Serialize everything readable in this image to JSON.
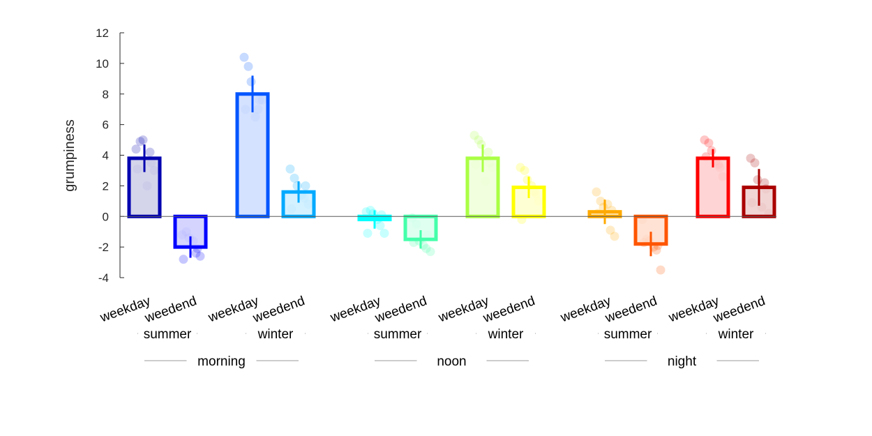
{
  "chart_data": {
    "type": "bar",
    "ylabel": "grumpiness",
    "ylim": [
      -4,
      12
    ],
    "yticks": [
      -4,
      -2,
      0,
      2,
      4,
      6,
      8,
      10,
      12
    ],
    "grid": false,
    "groups": [
      {
        "label": "morning",
        "subgroups": [
          {
            "label": "summer",
            "bars": [
              {
                "label": "weekday",
                "value": 3.8,
                "error": 0.9,
                "color": "#0000b0",
                "fill": "#cccce8",
                "points": [
                  4.4,
                  4.9,
                  5.0,
                  4.2,
                  3.0,
                  3.1,
                  2.0,
                  3.5
                ]
              },
              {
                "label": "weedend",
                "value": -2.0,
                "error": 0.7,
                "color": "#0000ff",
                "fill": "#ccccff",
                "points": [
                  -1.2,
                  -1.0,
                  -1.4,
                  -2.4,
                  -2.6,
                  -2.8,
                  -1.6,
                  -2.1
                ]
              }
            ]
          },
          {
            "label": "winter",
            "bars": [
              {
                "label": "weekday",
                "value": 8.0,
                "error": 1.2,
                "color": "#0055ff",
                "fill": "#ccdcff",
                "points": [
                  10.4,
                  9.8,
                  8.8,
                  7.0,
                  7.6,
                  7.0,
                  6.5,
                  7.6
                ]
              },
              {
                "label": "weedend",
                "value": 1.6,
                "error": 0.7,
                "color": "#00aaff",
                "fill": "#cceeff",
                "points": [
                  3.1,
                  2.5,
                  2.0,
                  1.2,
                  0.8,
                  0.5,
                  1.4,
                  2.0
                ]
              }
            ]
          }
        ]
      },
      {
        "label": "noon",
        "subgroups": [
          {
            "label": "summer",
            "bars": [
              {
                "label": "weekday",
                "value": -0.2,
                "error": 0.6,
                "color": "#00ffff",
                "fill": "#ccffff",
                "points": [
                  0.3,
                  0.4,
                  0.2,
                  -0.6,
                  -1.1,
                  -1.1,
                  -0.2,
                  0.1
                ]
              },
              {
                "label": "weedend",
                "value": -1.5,
                "error": 0.6,
                "color": "#44ffaa",
                "fill": "#d9ffee",
                "points": [
                  -0.1,
                  -0.5,
                  -1.6,
                  -2.1,
                  -2.3,
                  -1.7,
                  -1.9,
                  -1.2
                ]
              }
            ]
          },
          {
            "label": "winter",
            "bars": [
              {
                "label": "weekday",
                "value": 3.8,
                "error": 0.9,
                "color": "#aaff44",
                "fill": "#eeffd9",
                "points": [
                  5.3,
                  5.0,
                  4.7,
                  4.2,
                  3.2,
                  3.4,
                  2.3,
                  3.5
                ]
              },
              {
                "label": "weedend",
                "value": 1.9,
                "error": 0.7,
                "color": "#ffff00",
                "fill": "#ffffcc",
                "points": [
                  3.2,
                  3.0,
                  2.4,
                  1.6,
                  1.0,
                  -0.2,
                  2.0,
                  1.5
                ]
              }
            ]
          }
        ]
      },
      {
        "label": "night",
        "subgroups": [
          {
            "label": "summer",
            "bars": [
              {
                "label": "weekday",
                "value": 0.3,
                "error": 0.8,
                "color": "#ffaa00",
                "fill": "#ffeecc",
                "points": [
                  1.6,
                  1.0,
                  0.6,
                  -0.9,
                  -1.3,
                  0.2,
                  0.8,
                  0.4
                ]
              },
              {
                "label": "weedend",
                "value": -1.8,
                "error": 0.8,
                "color": "#ff5500",
                "fill": "#ffddcc",
                "points": [
                  -0.2,
                  -1.5,
                  -1.6,
                  -2.2,
                  -3.5,
                  -1.7,
                  -2.0,
                  -1.9
                ]
              }
            ]
          },
          {
            "label": "winter",
            "bars": [
              {
                "label": "weekday",
                "value": 3.8,
                "error": 0.6,
                "color": "#ff0000",
                "fill": "#ffcccc",
                "points": [
                  5.0,
                  4.8,
                  4.3,
                  3.4,
                  2.6,
                  3.9,
                  3.6,
                  3.2
                ]
              },
              {
                "label": "weedend",
                "value": 1.9,
                "error": 1.2,
                "color": "#aa0000",
                "fill": "#eecccc",
                "points": [
                  3.8,
                  3.5,
                  2.4,
                  2.2,
                  0.2,
                  0.9,
                  0.6,
                  1.8
                ]
              }
            ]
          }
        ]
      }
    ]
  }
}
